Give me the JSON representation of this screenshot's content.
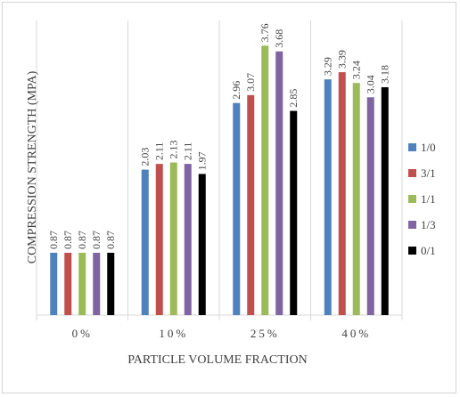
{
  "chart_data": {
    "type": "bar",
    "title": "",
    "xlabel": "PARTICLE VOLUME FRACTION",
    "ylabel": "COMPRESSION STRENGTH (MPA)",
    "categories": [
      "0%",
      "10%",
      "25%",
      "40%"
    ],
    "ylim": [
      0,
      4
    ],
    "grid": "vertical separators between categories",
    "legend_position": "right",
    "series": [
      {
        "name": "1/0",
        "color": "#4f81bd",
        "values": [
          0.87,
          2.03,
          2.96,
          3.29
        ]
      },
      {
        "name": "3/1",
        "color": "#c0504d",
        "values": [
          0.87,
          2.11,
          3.07,
          3.39
        ]
      },
      {
        "name": "1/1",
        "color": "#9bbb59",
        "values": [
          0.87,
          2.13,
          3.76,
          3.24
        ]
      },
      {
        "name": "1/3",
        "color": "#8064a2",
        "values": [
          0.87,
          2.11,
          3.68,
          3.04
        ]
      },
      {
        "name": "0/1",
        "color": "#000000",
        "values": [
          0.87,
          1.97,
          2.85,
          3.18
        ]
      }
    ],
    "data_labels": [
      [
        "0.87",
        "0.87",
        "0.87",
        "0.87",
        "0.87"
      ],
      [
        "2.03",
        "2.11",
        "2.13",
        "2.11",
        "1.97"
      ],
      [
        "2.96",
        "3.07",
        "3.76",
        "3.68",
        "2.85"
      ],
      [
        "3.29",
        "3.39",
        "3.24",
        "3.04",
        "3.18"
      ]
    ]
  }
}
